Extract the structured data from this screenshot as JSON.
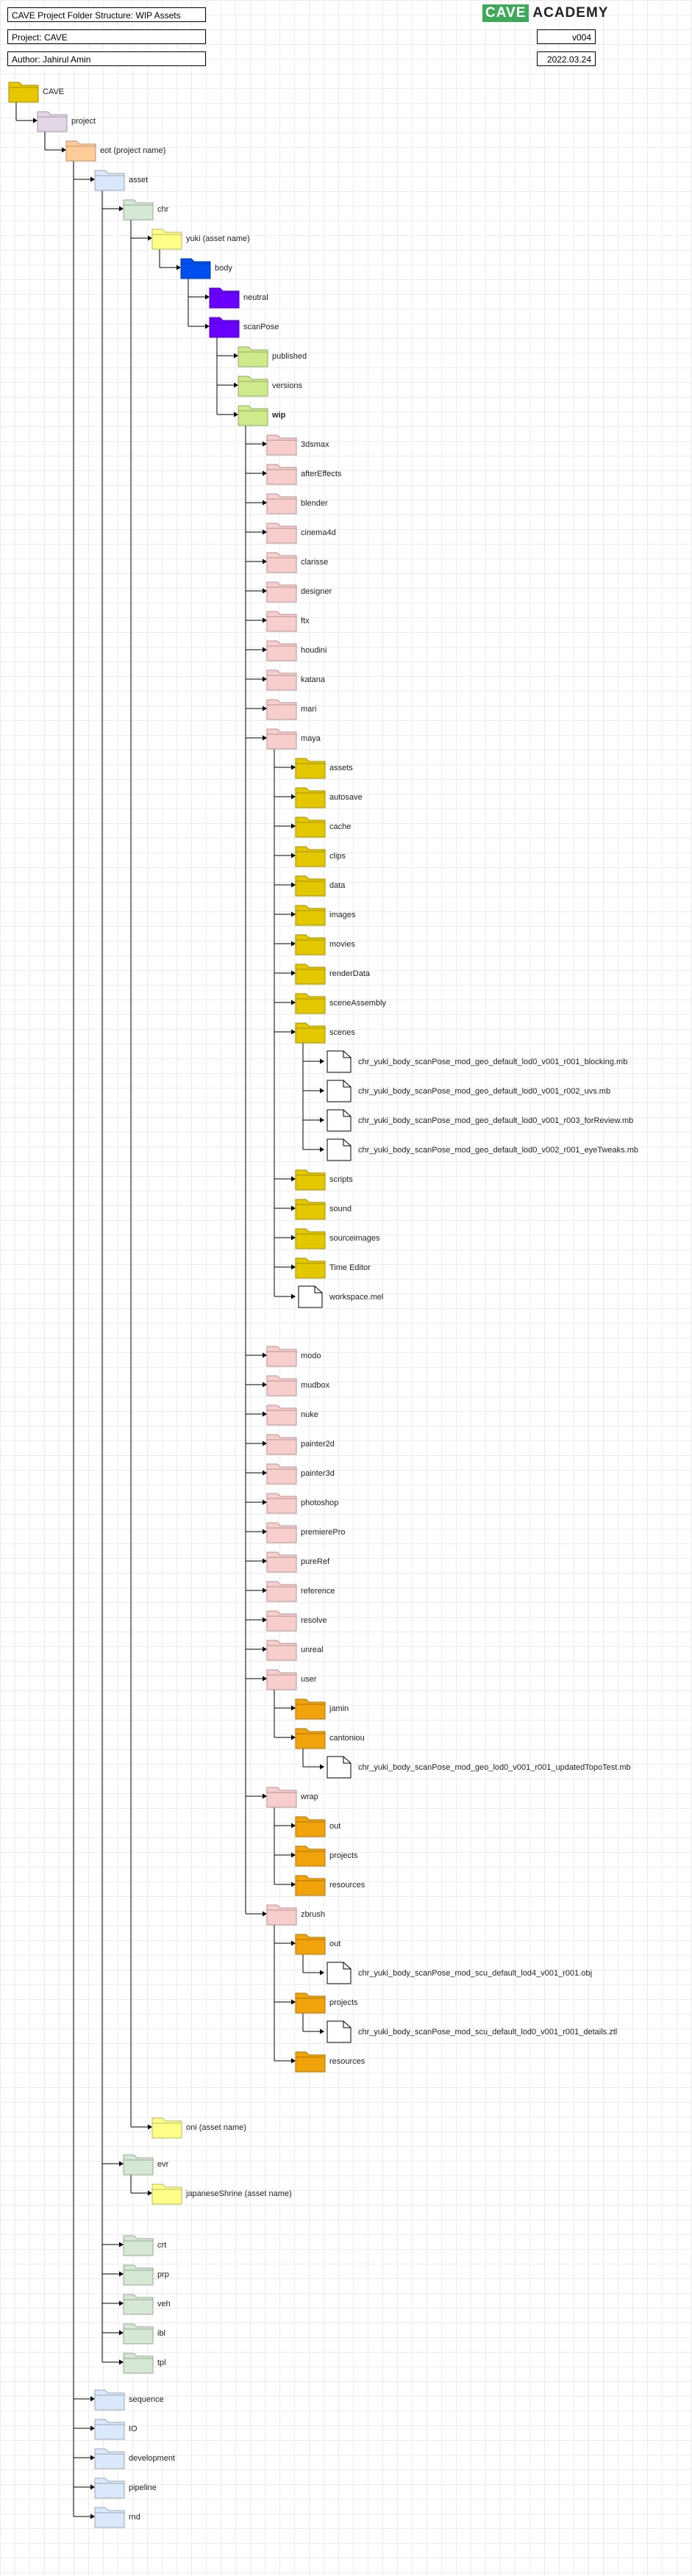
{
  "header": {
    "title": "CAVE Project Folder Structure: WIP Assets",
    "project": "Project: CAVE",
    "author": "Author: Jahirul Amin",
    "version": "v004",
    "date": "2022.03.24",
    "logo_mark": "CAVE",
    "logo_word": "ACADEMY"
  },
  "colors": {
    "root": "#e6c700",
    "project": "#e1d5e7",
    "eot": "#ffcc99",
    "level3": "#dae8fc",
    "chr": "#d5e8d4",
    "asset_name": "#ffff88",
    "body": "#0050ef",
    "pose": "#6a00ff",
    "stage": "#cdeb8b",
    "app": "#f8cecc",
    "maya": "#e3c800",
    "user": "#f0a30a",
    "file": "#ffffff"
  },
  "tree": [
    {
      "label": "CAVE",
      "color": "root",
      "kind": "folder",
      "parent": null
    },
    {
      "label": "project",
      "color": "project",
      "kind": "folder",
      "parent": 0
    },
    {
      "label": "eot (project name)",
      "color": "eot",
      "kind": "folder",
      "parent": 1
    },
    {
      "label": "asset",
      "color": "level3",
      "kind": "folder",
      "parent": 2
    },
    {
      "label": "chr",
      "color": "chr",
      "kind": "folder",
      "parent": 3
    },
    {
      "label": "yuki (asset name)",
      "color": "asset_name",
      "kind": "folder",
      "parent": 4
    },
    {
      "label": "body",
      "color": "body",
      "kind": "folder",
      "parent": 5
    },
    {
      "label": "neutral",
      "color": "pose",
      "kind": "folder",
      "parent": 6
    },
    {
      "label": "scanPose",
      "color": "pose",
      "kind": "folder",
      "parent": 6
    },
    {
      "label": "published",
      "color": "stage",
      "kind": "folder",
      "parent": 8
    },
    {
      "label": "versions",
      "color": "stage",
      "kind": "folder",
      "parent": 8
    },
    {
      "label": "wip",
      "color": "stage",
      "kind": "folder",
      "parent": 8,
      "bold": true
    },
    {
      "label": "3dsmax",
      "color": "app",
      "kind": "folder",
      "parent": 11
    },
    {
      "label": "afterEffects",
      "color": "app",
      "kind": "folder",
      "parent": 11
    },
    {
      "label": "blender",
      "color": "app",
      "kind": "folder",
      "parent": 11
    },
    {
      "label": "cinema4d",
      "color": "app",
      "kind": "folder",
      "parent": 11
    },
    {
      "label": "clarisse",
      "color": "app",
      "kind": "folder",
      "parent": 11
    },
    {
      "label": "designer",
      "color": "app",
      "kind": "folder",
      "parent": 11
    },
    {
      "label": "ftx",
      "color": "app",
      "kind": "folder",
      "parent": 11
    },
    {
      "label": "houdini",
      "color": "app",
      "kind": "folder",
      "parent": 11
    },
    {
      "label": "katana",
      "color": "app",
      "kind": "folder",
      "parent": 11
    },
    {
      "label": "mari",
      "color": "app",
      "kind": "folder",
      "parent": 11
    },
    {
      "label": "maya",
      "color": "app",
      "kind": "folder",
      "parent": 11
    },
    {
      "label": "assets",
      "color": "maya",
      "kind": "folder",
      "parent": 22
    },
    {
      "label": "autosave",
      "color": "maya",
      "kind": "folder",
      "parent": 22
    },
    {
      "label": "cache",
      "color": "maya",
      "kind": "folder",
      "parent": 22
    },
    {
      "label": "clips",
      "color": "maya",
      "kind": "folder",
      "parent": 22
    },
    {
      "label": "data",
      "color": "maya",
      "kind": "folder",
      "parent": 22
    },
    {
      "label": "images",
      "color": "maya",
      "kind": "folder",
      "parent": 22
    },
    {
      "label": "movies",
      "color": "maya",
      "kind": "folder",
      "parent": 22
    },
    {
      "label": "renderData",
      "color": "maya",
      "kind": "folder",
      "parent": 22
    },
    {
      "label": "sceneAssembly",
      "color": "maya",
      "kind": "folder",
      "parent": 22
    },
    {
      "label": "scenes",
      "color": "maya",
      "kind": "folder",
      "parent": 22
    },
    {
      "label": "chr_yuki_body_scanPose_mod_geo_default_lod0_v001_r001_blocking.mb",
      "color": "file",
      "kind": "file",
      "parent": 32
    },
    {
      "label": "chr_yuki_body_scanPose_mod_geo_default_lod0_v001_r002_uvs.mb",
      "color": "file",
      "kind": "file",
      "parent": 32
    },
    {
      "label": "chr_yuki_body_scanPose_mod_geo_default_lod0_v001_r003_forReview.mb",
      "color": "file",
      "kind": "file",
      "parent": 32
    },
    {
      "label": "chr_yuki_body_scanPose_mod_geo_default_lod0_v002_r001_eyeTweaks.mb",
      "color": "file",
      "kind": "file",
      "parent": 32
    },
    {
      "label": "scripts",
      "color": "maya",
      "kind": "folder",
      "parent": 22
    },
    {
      "label": "sound",
      "color": "maya",
      "kind": "folder",
      "parent": 22
    },
    {
      "label": "sourceimages",
      "color": "maya",
      "kind": "folder",
      "parent": 22
    },
    {
      "label": "Time Editor",
      "color": "maya",
      "kind": "folder",
      "parent": 22
    },
    {
      "label": "workspace.mel",
      "color": "file",
      "kind": "file",
      "parent": 22
    },
    {
      "label": "modo",
      "color": "app",
      "kind": "folder",
      "parent": 11
    },
    {
      "label": "mudbox",
      "color": "app",
      "kind": "folder",
      "parent": 11
    },
    {
      "label": "nuke",
      "color": "app",
      "kind": "folder",
      "parent": 11
    },
    {
      "label": "painter2d",
      "color": "app",
      "kind": "folder",
      "parent": 11
    },
    {
      "label": "painter3d",
      "color": "app",
      "kind": "folder",
      "parent": 11
    },
    {
      "label": "photoshop",
      "color": "app",
      "kind": "folder",
      "parent": 11
    },
    {
      "label": "premierePro",
      "color": "app",
      "kind": "folder",
      "parent": 11
    },
    {
      "label": "pureRef",
      "color": "app",
      "kind": "folder",
      "parent": 11
    },
    {
      "label": "reference",
      "color": "app",
      "kind": "folder",
      "parent": 11
    },
    {
      "label": "resolve",
      "color": "app",
      "kind": "folder",
      "parent": 11
    },
    {
      "label": "unreal",
      "color": "app",
      "kind": "folder",
      "parent": 11
    },
    {
      "label": "user",
      "color": "app",
      "kind": "folder",
      "parent": 11
    },
    {
      "label": "jamin",
      "color": "user",
      "kind": "folder",
      "parent": 53
    },
    {
      "label": "cantoniou",
      "color": "user",
      "kind": "folder",
      "parent": 53
    },
    {
      "label": "chr_yuki_body_scanPose_mod_geo_lod0_v001_r001_updatedTopoTest.mb",
      "color": "file",
      "kind": "file",
      "parent": 55
    },
    {
      "label": "wrap",
      "color": "app",
      "kind": "folder",
      "parent": 11
    },
    {
      "label": "out",
      "color": "user",
      "kind": "folder",
      "parent": 57
    },
    {
      "label": "projects",
      "color": "user",
      "kind": "folder",
      "parent": 57
    },
    {
      "label": "resources",
      "color": "user",
      "kind": "folder",
      "parent": 57
    },
    {
      "label": "zbrush",
      "color": "app",
      "kind": "folder",
      "parent": 11
    },
    {
      "label": "out",
      "color": "user",
      "kind": "folder",
      "parent": 61
    },
    {
      "label": "chr_yuki_body_scanPose_mod_scu_default_lod4_v001_r001.obj",
      "color": "file",
      "kind": "file",
      "parent": 62
    },
    {
      "label": "projects",
      "color": "user",
      "kind": "folder",
      "parent": 61
    },
    {
      "label": "chr_yuki_body_scanPose_mod_scu_default_lod0_v001_r001_details.ztl",
      "color": "file",
      "kind": "file",
      "parent": 64
    },
    {
      "label": "resources",
      "color": "user",
      "kind": "folder",
      "parent": 61
    },
    {
      "label": "oni (asset name)",
      "color": "asset_name",
      "kind": "folder",
      "parent": 4
    },
    {
      "label": "evr",
      "color": "chr",
      "kind": "folder",
      "parent": 3
    },
    {
      "label": "japaneseShrine (asset name)",
      "color": "asset_name",
      "kind": "folder",
      "parent": 68
    },
    {
      "label": "crt",
      "color": "chr",
      "kind": "folder",
      "parent": 3
    },
    {
      "label": "prp",
      "color": "chr",
      "kind": "folder",
      "parent": 3
    },
    {
      "label": "veh",
      "color": "chr",
      "kind": "folder",
      "parent": 3
    },
    {
      "label": "ibl",
      "color": "chr",
      "kind": "folder",
      "parent": 3
    },
    {
      "label": "tpl",
      "color": "chr",
      "kind": "folder",
      "parent": 3
    },
    {
      "label": "sequence",
      "color": "level3",
      "kind": "folder",
      "parent": 2
    },
    {
      "label": "IO",
      "color": "level3",
      "kind": "folder",
      "parent": 2
    },
    {
      "label": "development",
      "color": "level3",
      "kind": "folder",
      "parent": 2
    },
    {
      "label": "pipeline",
      "color": "level3",
      "kind": "folder",
      "parent": 2
    },
    {
      "label": "rnd",
      "color": "level3",
      "kind": "folder",
      "parent": 2
    }
  ]
}
